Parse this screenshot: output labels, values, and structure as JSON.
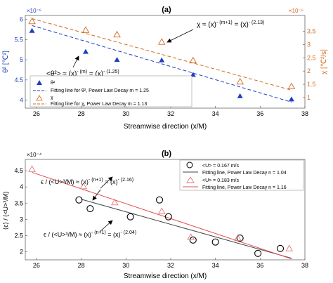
{
  "chart_data": [
    {
      "panel": "(a)",
      "type": "scatter",
      "xlabel": "Streamwise direction (x/M)",
      "xlim": [
        25.5,
        38
      ],
      "xticks": [
        26,
        28,
        30,
        32,
        34,
        36,
        38
      ],
      "left_axis": {
        "label": "θ² [℃²]",
        "exponent": "×10⁻⁶",
        "ylim": [
          3.8,
          6.1
        ],
        "ticks": [
          4,
          4.5,
          5,
          5.5,
          6
        ],
        "color": "#1f3fbf"
      },
      "right_axis": {
        "label": "χ [℃²/s]",
        "exponent": "×10⁻⁶",
        "ylim": [
          0.6,
          4.1
        ],
        "ticks": [
          1,
          1.5,
          2,
          2.5,
          3,
          3.5
        ],
        "color": "#d2691e"
      },
      "series": [
        {
          "name": "θ²",
          "marker": "filled-triangle",
          "color": "#1f3fbf",
          "axis": "left",
          "x": [
            25.8,
            28.2,
            29.6,
            31.6,
            33.0,
            35.1,
            37.4
          ],
          "y": [
            5.72,
            5.2,
            5.0,
            4.99,
            4.63,
            4.1,
            4.02
          ]
        },
        {
          "name": "Fitting line for θ², Power Law Decay  m = 1.25",
          "style": "dashed",
          "color": "#1f3fbf",
          "axis": "left",
          "x": [
            25.8,
            37.4
          ],
          "y": [
            5.85,
            3.95
          ]
        },
        {
          "name": "χ",
          "marker": "open-triangle",
          "color": "#d2691e",
          "axis": "right",
          "x": [
            25.8,
            28.2,
            29.6,
            31.6,
            33.0,
            35.1,
            37.4
          ],
          "y": [
            3.88,
            3.55,
            3.38,
            3.1,
            2.4,
            1.6,
            1.42
          ]
        },
        {
          "name": "Fitting line for χ, Power Law Decay  m = 1.13",
          "style": "dashed",
          "color": "#d2691e",
          "axis": "right",
          "x": [
            25.8,
            37.4
          ],
          "y": [
            3.98,
            1.28
          ]
        }
      ],
      "annotations": [
        {
          "id": "chi",
          "parts": [
            "χ ≈ (x)",
            "- (m+1)",
            " = (x)",
            "- (2.13)"
          ]
        },
        {
          "id": "theta",
          "parts": [
            "<θ²> ≈ (x)",
            "- (m)",
            " = (x)",
            "- (1.25)"
          ]
        }
      ]
    },
    {
      "panel": "(b)",
      "type": "scatter",
      "xlabel": "Streamwise direction (x/M)",
      "ylabel": "⟨ϵ⟩ / (<U>³/M)",
      "exponent": "×10⁻⁴",
      "xlim": [
        25.5,
        38
      ],
      "xticks": [
        26,
        28,
        30,
        32,
        34,
        36,
        38
      ],
      "ylim": [
        1.75,
        4.85
      ],
      "yticks": [
        2,
        2.5,
        3,
        3.5,
        4,
        4.5
      ],
      "series": [
        {
          "name": "<U> = 0.167 m/s",
          "marker": "open-circle",
          "color": "#000000",
          "x": [
            27.9,
            28.4,
            30.2,
            31.5,
            31.9,
            33.0,
            34.0,
            35.1,
            35.9,
            36.9
          ],
          "y": [
            3.6,
            3.33,
            3.08,
            3.6,
            3.08,
            2.36,
            2.3,
            2.42,
            1.95,
            2.1
          ]
        },
        {
          "name": "Fitting line, Power Law Decay  n = 1.04",
          "style": "solid",
          "color": "#444444",
          "x": [
            28.0,
            37.4
          ],
          "y": [
            3.62,
            1.8
          ]
        },
        {
          "name": "<U> = 0.183 m/s",
          "marker": "open-triangle",
          "color": "#e07a7a",
          "x": [
            25.8,
            28.1,
            29.5,
            31.6,
            32.9,
            35.0,
            37.3
          ],
          "y": [
            4.55,
            4.02,
            3.52,
            3.25,
            2.45,
            2.42,
            2.1
          ]
        },
        {
          "name": "Fitting line, Power Law Decay  n = 1.16",
          "style": "solid",
          "color": "#e05050",
          "x": [
            25.8,
            37.4
          ],
          "y": [
            4.45,
            1.78
          ]
        }
      ],
      "annotations": [
        {
          "id": "upper",
          "parts": [
            "ϵ / (<U>³/M)  ≈ (x)",
            "- (n+1)",
            " = (x)",
            "- (2.16)"
          ]
        },
        {
          "id": "lower",
          "parts": [
            "ϵ / (<U>³/M)  ≈ (x)",
            "- (n+1)",
            " = (x)",
            "- (2.04)"
          ]
        }
      ]
    }
  ]
}
